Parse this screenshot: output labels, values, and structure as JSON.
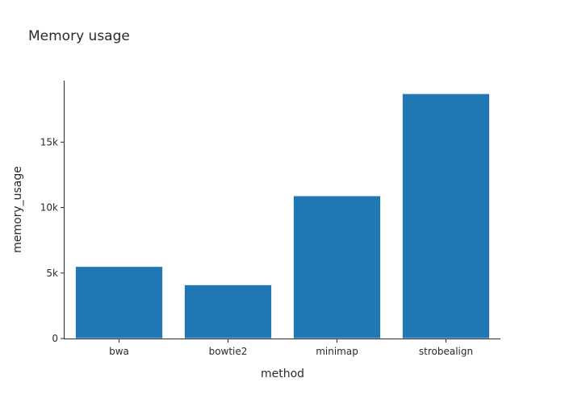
{
  "chart_data": {
    "type": "bar",
    "title": "Memory usage",
    "xlabel": "method",
    "ylabel": "memory_usage",
    "categories": [
      "bwa",
      "bowtie2",
      "minimap",
      "strobealign"
    ],
    "values": [
      5500,
      4100,
      10900,
      18700
    ],
    "ylim": [
      0,
      19700
    ],
    "yticks": [
      0,
      5000,
      10000,
      15000
    ],
    "ytick_labels": [
      "0",
      "5k",
      "10k",
      "15k"
    ],
    "grid": false,
    "legend": false,
    "colors": {
      "bar": "#1f77b4",
      "axis": "#2a2a2a",
      "text": "#2a2a2a"
    }
  }
}
